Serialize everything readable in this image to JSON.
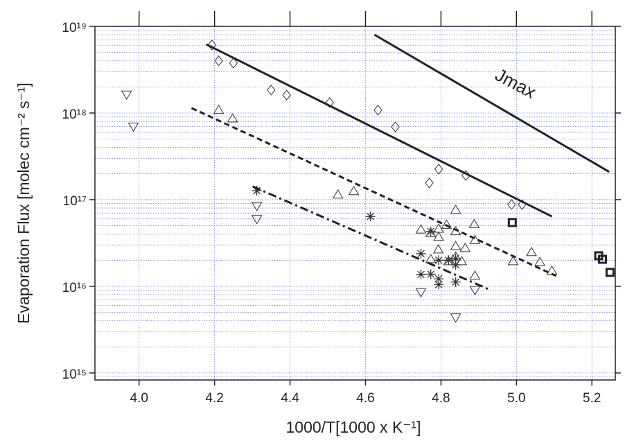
{
  "chart_data": {
    "type": "scatter",
    "xlabel": "1000/T[1000 x K⁻¹]",
    "ylabel": "Evaporation Flux [molec cm⁻² s⁻¹]",
    "xlim": [
      3.883,
      5.262
    ],
    "ylim": [
      830000000000000.0,
      1e+19
    ],
    "ylog": true,
    "grid": true,
    "minor_grid": true,
    "xticks": [
      {
        "value": 4.0,
        "label": "4.0"
      },
      4.2,
      4.4,
      4.6,
      4.8,
      {
        "value": 5.0,
        "label": "5.0"
      },
      5.2
    ],
    "yticks": [
      {
        "value": 1000000000000000.0,
        "label": "10¹⁵"
      },
      {
        "value": 1e+16,
        "label": "10¹⁶"
      },
      {
        "value": 1e+17,
        "label": "10¹⁷"
      },
      {
        "value": 1e+18,
        "label": "10¹⁸"
      },
      {
        "value": 1e+19,
        "label": "10¹⁹"
      }
    ],
    "annotations": [
      {
        "text": "Jmax",
        "x": 4.99,
        "y": 1.9e+18
      }
    ],
    "series": [
      {
        "marker": "diamond",
        "color": "#333333",
        "x": [
          4.193,
          4.211,
          4.25,
          4.35,
          4.391,
          4.505,
          4.633,
          4.679,
          4.794,
          4.769,
          4.866,
          4.987,
          5.015
        ],
        "values": [
          6.1e+18,
          4e+18,
          3.77e+18,
          1.84e+18,
          1.61e+18,
          1.32e+18,
          1.08e+18,
          6.9e+17,
          2.25e+17,
          1.56e+17,
          1.9e+17,
          8.8e+16,
          8.8e+16
        ]
      },
      {
        "marker": "triangle-up",
        "color": "#333333",
        "x": [
          4.211,
          4.248,
          4.527,
          4.569,
          4.747,
          4.773,
          4.794,
          4.794,
          4.839,
          4.815,
          4.888,
          4.793,
          4.839,
          4.839,
          4.864,
          4.89,
          4.839,
          4.773,
          4.82,
          4.855,
          4.89,
          4.991,
          5.04,
          5.062,
          5.094
        ],
        "values": [
          1.08e+18,
          8.6e+17,
          1.14e+17,
          1.25e+17,
          4.5e+16,
          4.1e+16,
          4.6e+16,
          3.7e+16,
          7.6e+16,
          5.1e+16,
          5.2e+16,
          2.65e+16,
          2.9e+16,
          2.2e+16,
          2.75e+16,
          3.4e+16,
          4.3e+16,
          2.05e+16,
          1.94e+16,
          1.94e+16,
          1.32e+16,
          1.94e+16,
          2.47e+16,
          1.9e+16,
          1.5e+16
        ]
      },
      {
        "marker": "triangle-down",
        "color": "#333333",
        "x": [
          3.967,
          3.985,
          4.312,
          4.312,
          4.747,
          4.839,
          4.89
        ],
        "values": [
          1.64e+18,
          7e+17,
          8.5e+16,
          6e+16,
          8600000000000000.0,
          4400000000000000.0,
          9100000000000000.0
        ]
      },
      {
        "marker": "asterisk",
        "color": "#333333",
        "x": [
          4.312,
          4.613,
          4.747,
          4.747,
          4.773,
          4.773,
          4.794,
          4.794,
          4.794,
          4.82,
          4.839,
          4.839,
          4.839
        ],
        "values": [
          1.27e+17,
          6.4e+16,
          2.38e+16,
          1.37e+16,
          4.3e+16,
          1.38e+16,
          2e+16,
          1.22e+16,
          1.05e+16,
          2e+16,
          2.1e+16,
          1.77e+16,
          1.12e+16
        ]
      },
      {
        "marker": "square",
        "color": "#222222",
        "x": [
          4.989,
          5.218,
          5.228,
          5.248
        ],
        "values": [
          5.45e+16,
          2.25e+16,
          2.05e+16,
          1.45e+16
        ]
      },
      {
        "marker": "line",
        "dash": "solid",
        "color": "#222222",
        "x": [
          4.624,
          5.246
        ],
        "values": [
          8e+18,
          2.09e+17
        ]
      },
      {
        "marker": "line",
        "dash": "solid",
        "color": "#222222",
        "x": [
          4.178,
          5.094
        ],
        "values": [
          6.2e+18,
          6.4e+16
        ]
      },
      {
        "marker": "line",
        "dash": "dashed",
        "color": "#222222",
        "x": [
          4.139,
          5.105
        ],
        "values": [
          1.14e+18,
          1.32e+16
        ]
      },
      {
        "marker": "line",
        "dash": "dashdot",
        "color": "#222222",
        "x": [
          4.301,
          4.93
        ],
        "values": [
          1.42e+17,
          9100000000000000.0
        ]
      }
    ]
  }
}
